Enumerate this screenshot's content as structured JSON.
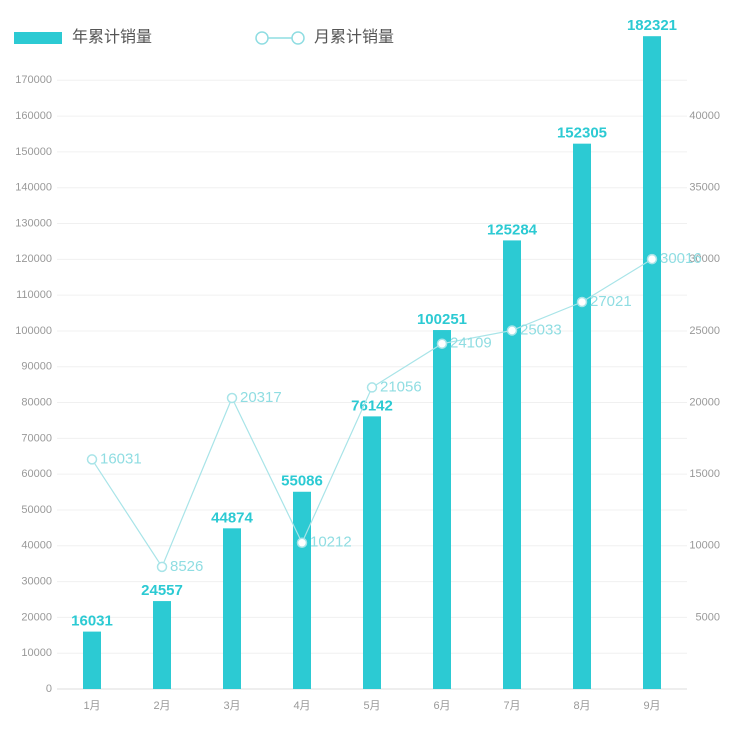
{
  "chart_data": {
    "type": "bar-line",
    "categories": [
      "1月",
      "2月",
      "3月",
      "4月",
      "5月",
      "6月",
      "7月",
      "8月",
      "9月"
    ],
    "series": [
      {
        "name": "年累计销量",
        "color": "#2ccad3",
        "type": "bar",
        "values": [
          16031,
          24557,
          44874,
          55086,
          76142,
          100251,
          125284,
          152305,
          182321
        ]
      },
      {
        "name": "月累计销量",
        "color": "#a8e4e8",
        "type": "line",
        "axis": "y2",
        "values": [
          16031,
          8526,
          20317,
          10212,
          21056,
          24109,
          25033,
          27021,
          30016
        ]
      }
    ],
    "ylim": [
      0,
      180000
    ],
    "yticks": [
      0,
      10000,
      20000,
      30000,
      40000,
      50000,
      60000,
      70000,
      80000,
      90000,
      100000,
      110000,
      120000,
      130000,
      140000,
      150000,
      160000,
      170000
    ],
    "y2lim": [
      0,
      45000
    ],
    "y2ticks": [
      5000,
      10000,
      15000,
      20000,
      25000,
      30000,
      35000,
      40000
    ],
    "grid": true
  }
}
